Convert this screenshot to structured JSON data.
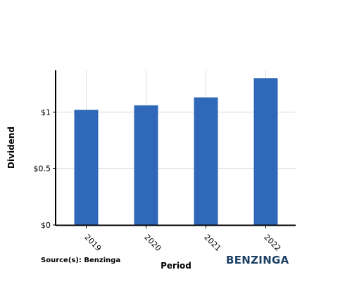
{
  "chart_data": {
    "type": "bar",
    "categories": [
      "2019",
      "2020",
      "2021",
      "2022"
    ],
    "values": [
      1.02,
      1.06,
      1.13,
      1.3
    ],
    "xlabel": "Period",
    "ylabel": "Dividend",
    "y_ticks": [
      {
        "value": 0,
        "label": "$0"
      },
      {
        "value": 0.5,
        "label": "$0.5"
      },
      {
        "value": 1,
        "label": "$1"
      }
    ],
    "ylim": [
      0,
      1.37
    ],
    "grid": true,
    "legend": "none",
    "bar_color": "#2f68b8",
    "gridline_color": "#dddddd"
  },
  "footer": {
    "source": "Source(s): Benzinga",
    "brand": "BENZINGA",
    "brand_color": "#1c3f63"
  }
}
